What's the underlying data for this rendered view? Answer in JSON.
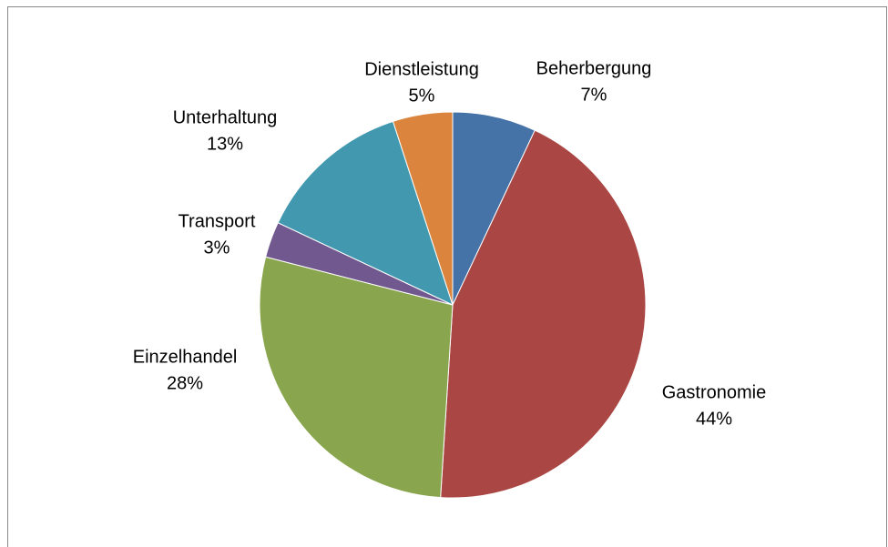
{
  "chart_data": {
    "type": "pie",
    "categories": [
      "Beherbergung",
      "Gastronomie",
      "Einzelhandel",
      "Transport",
      "Unterhaltung",
      "Dienstleistung"
    ],
    "values": [
      7,
      44,
      28,
      3,
      13,
      5
    ],
    "value_labels": [
      "7%",
      "44%",
      "28%",
      "3%",
      "13%",
      "5%"
    ],
    "colors": [
      "#4572a7",
      "#aa4643",
      "#89a54e",
      "#71588f",
      "#4198af",
      "#db843d"
    ]
  }
}
